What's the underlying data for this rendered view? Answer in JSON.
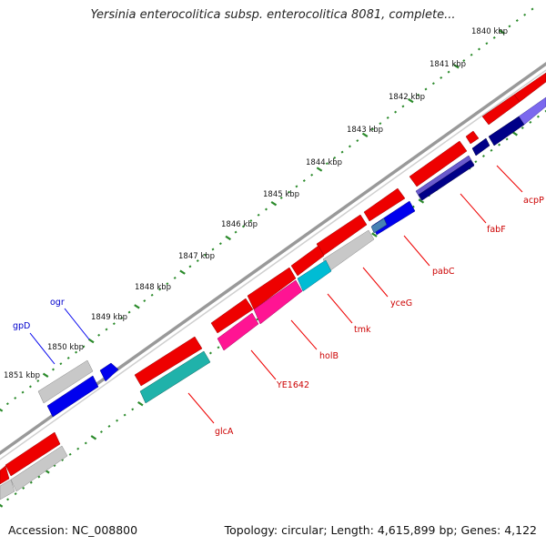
{
  "title": "Yersinia enterocolitica subsp. enterocolitica 8081, complete...",
  "footer": {
    "accession_prefix": "Accession: ",
    "accession": "NC_008800",
    "topology_prefix": "Topology: ",
    "topology": "circular",
    "length_prefix": "; Length: ",
    "length": "4,615,899 bp",
    "genes_prefix": "; Genes: ",
    "genes": "4,122"
  },
  "ruler_labels": [
    "1840 kbp",
    "1841 kbp",
    "1842 kbp",
    "1843 kbp",
    "1844 kbp",
    "1845 kbp",
    "1846 kbp",
    "1847 kbp",
    "1848 kbp",
    "1849 kbp",
    "1850 kbp",
    "1851 kbp"
  ],
  "gene_labels": [
    {
      "text": "acpP",
      "color": "red"
    },
    {
      "text": "fabF",
      "color": "red"
    },
    {
      "text": "pabC",
      "color": "red"
    },
    {
      "text": "yceG",
      "color": "red"
    },
    {
      "text": "tmk",
      "color": "red"
    },
    {
      "text": "holB",
      "color": "red"
    },
    {
      "text": "YE1642",
      "color": "red"
    },
    {
      "text": "glcA",
      "color": "red"
    },
    {
      "text": "ogr",
      "color": "blue"
    },
    {
      "text": "gpD",
      "color": "blue"
    }
  ],
  "colors": {
    "cds": "#ee0000",
    "cds_dark": "#b00000",
    "gray": "#c0c0c0",
    "navy": "#000088",
    "blue": "#0000ee",
    "slate": "#6a5acd",
    "cyan": "#00bcd4",
    "pink": "#ff1493",
    "teal": "#20b2aa",
    "steel": "#4682b4",
    "backbone": "#888888",
    "tick": "#2a8a2a",
    "label_line_red": "#ee0000",
    "label_line_blue": "#0000ee"
  }
}
